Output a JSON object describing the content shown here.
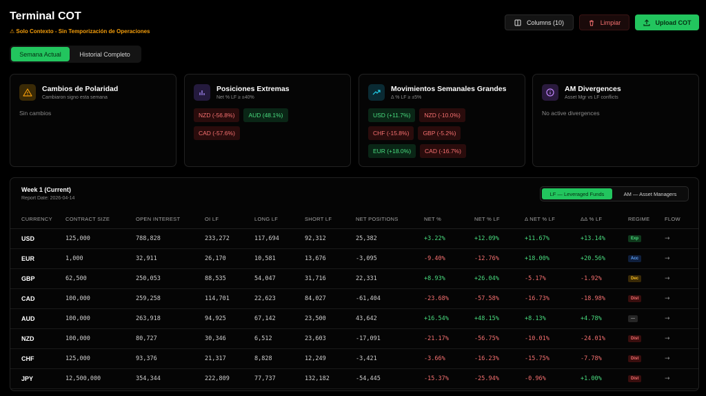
{
  "header": {
    "title": "Terminal COT",
    "subtitle": "⚠ Solo Contexto - Sin Temporización de Operaciones",
    "columns_label": "Columns (10)",
    "clear_label": "Limpiar",
    "upload_label": "Upload COT"
  },
  "tabs": [
    {
      "label": "Semana Actual",
      "active": true
    },
    {
      "label": "Historial Completo",
      "active": false
    }
  ],
  "cards": {
    "polarity": {
      "title": "Cambios de Polaridad",
      "subtitle": "Cambiaron signo esta semana",
      "empty": "Sin cambios",
      "icon": "warning-icon",
      "color": "#f59e0b"
    },
    "extreme": {
      "title": "Posiciones Extremas",
      "subtitle": "Net % LF ≥ ±40%",
      "icon": "bar-chart-icon",
      "color": "#a78bfa",
      "chips": [
        {
          "label": "NZD (-56.8%)",
          "tone": "neg"
        },
        {
          "label": "AUD (48.1%)",
          "tone": "pos"
        },
        {
          "label": "CAD (-57.6%)",
          "tone": "neg"
        }
      ]
    },
    "weekly": {
      "title": "Movimientos Semanales Grandes",
      "subtitle": "Δ % LF ≥ ±5%",
      "icon": "trending-up-icon",
      "color": "#22d3ee",
      "chips": [
        {
          "label": "USD (+11.7%)",
          "tone": "pos"
        },
        {
          "label": "NZD (-10.0%)",
          "tone": "neg"
        },
        {
          "label": "CHF (-15.8%)",
          "tone": "neg"
        },
        {
          "label": "GBP (-5.2%)",
          "tone": "neg"
        },
        {
          "label": "EUR (+18.0%)",
          "tone": "pos"
        },
        {
          "label": "CAD (-16.7%)",
          "tone": "neg"
        }
      ]
    },
    "am": {
      "title": "AM Divergences",
      "subtitle": "Asset Mgr vs LF conflicts",
      "empty": "No active divergences",
      "icon": "info-icon",
      "color": "#c084fc"
    }
  },
  "week": {
    "title": "Week 1 (Current)",
    "date": "Report Date: 2026-04-14",
    "toggle": [
      {
        "label": "LF — Leveraged Funds",
        "active": true
      },
      {
        "label": "AM — Asset Managers",
        "active": false
      }
    ]
  },
  "table": {
    "headers": [
      "CURRENCY",
      "CONTRACT SIZE",
      "OPEN INTEREST",
      "OI LF",
      "LONG LF",
      "SHORT LF",
      "NET POSITIONS",
      "NET %",
      "NET % LF",
      "Δ NET % LF",
      "ΔΔ % LF",
      "REGIME",
      "FLOW"
    ],
    "rows": [
      [
        "USD",
        "125,000",
        "788,828",
        "233,272",
        "117,694",
        "92,312",
        "25,382",
        "+3.22%",
        "+12.09%",
        "+11.67%",
        "+13.14%",
        "Exp",
        "→"
      ],
      [
        "EUR",
        "1,000",
        "32,911",
        "26,170",
        "10,581",
        "13,676",
        "-3,095",
        "-9.40%",
        "-12.76%",
        "+18.00%",
        "+20.56%",
        "Acc",
        "→"
      ],
      [
        "GBP",
        "62,500",
        "250,053",
        "88,535",
        "54,047",
        "31,716",
        "22,331",
        "+8.93%",
        "+26.04%",
        "-5.17%",
        "-1.92%",
        "Dec",
        "→"
      ],
      [
        "CAD",
        "100,000",
        "259,258",
        "114,701",
        "22,623",
        "84,027",
        "-61,404",
        "-23.68%",
        "-57.58%",
        "-16.73%",
        "-18.98%",
        "Dist",
        "→"
      ],
      [
        "AUD",
        "100,000",
        "263,918",
        "94,925",
        "67,142",
        "23,500",
        "43,642",
        "+16.54%",
        "+48.15%",
        "+8.13%",
        "+4.78%",
        "—",
        "→"
      ],
      [
        "NZD",
        "100,000",
        "80,727",
        "30,346",
        "6,512",
        "23,603",
        "-17,091",
        "-21.17%",
        "-56.75%",
        "-10.01%",
        "-24.01%",
        "Dist",
        "→"
      ],
      [
        "CHF",
        "125,000",
        "93,376",
        "21,317",
        "8,828",
        "12,249",
        "-3,421",
        "-3.66%",
        "-16.23%",
        "-15.75%",
        "-7.78%",
        "Dist",
        "→"
      ],
      [
        "JPY",
        "12,500,000",
        "354,344",
        "222,809",
        "77,737",
        "132,182",
        "-54,445",
        "-15.37%",
        "-25.94%",
        "-0.96%",
        "+1.00%",
        "Dist",
        "→"
      ]
    ]
  }
}
